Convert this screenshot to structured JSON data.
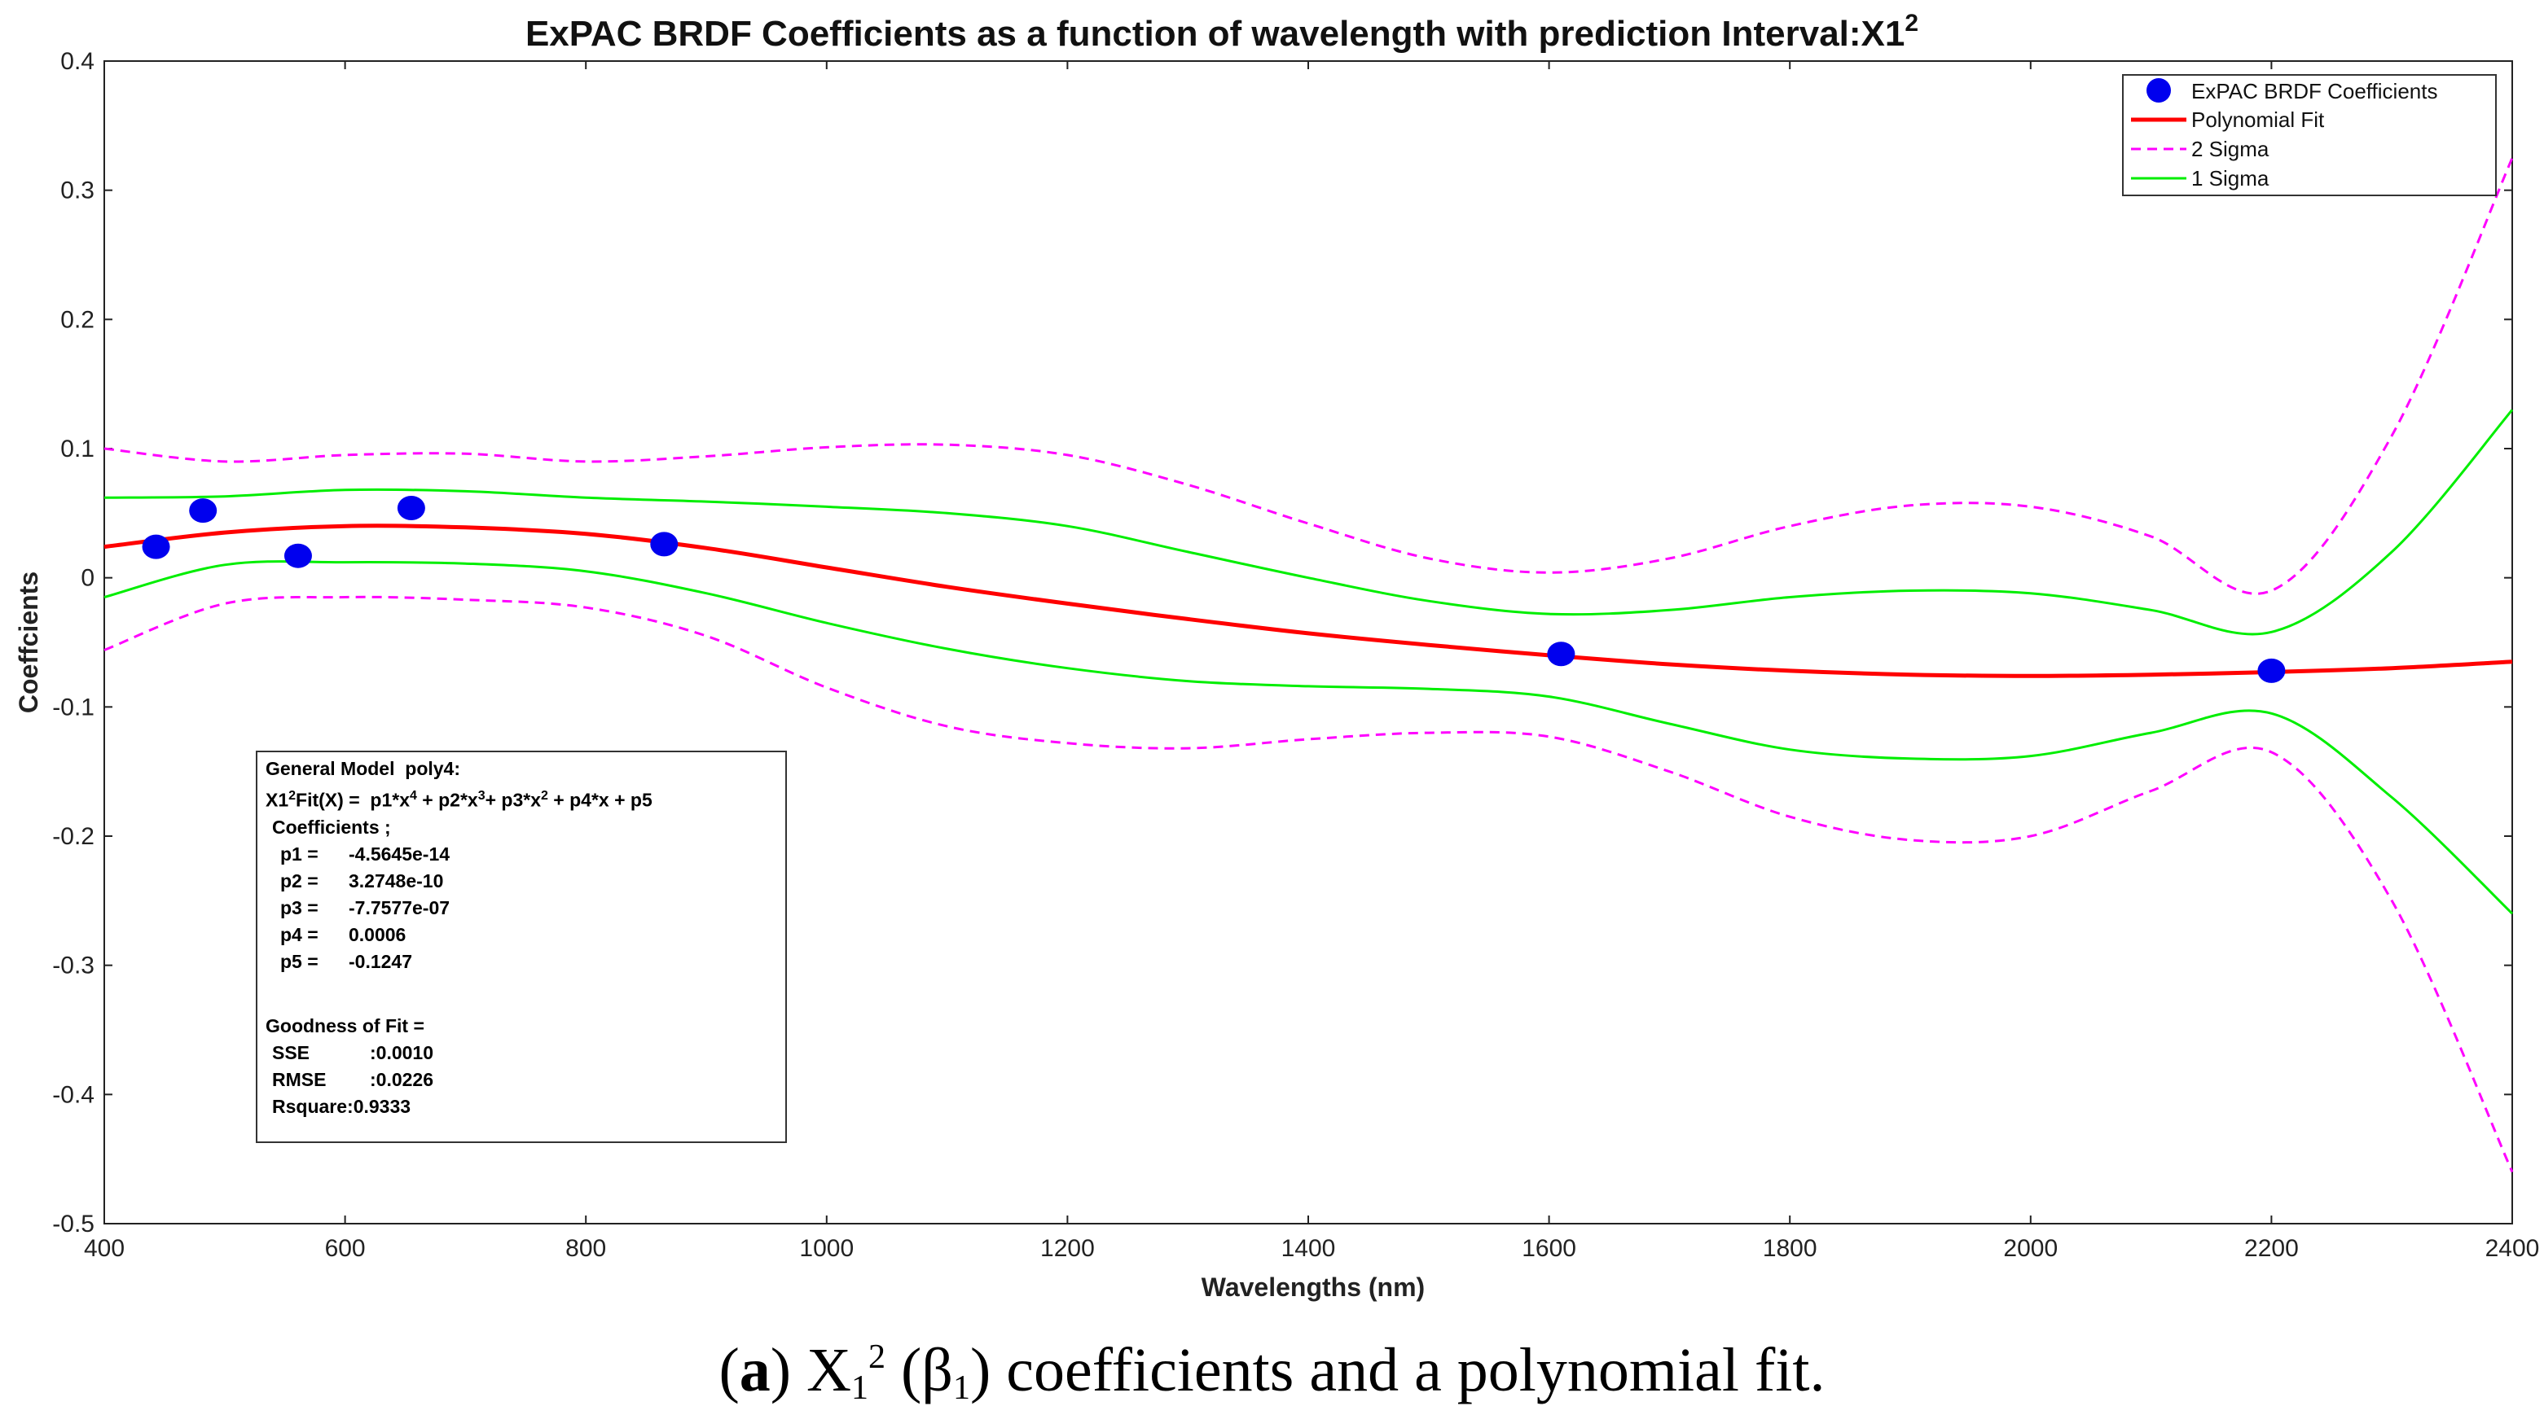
{
  "chart_data": {
    "type": "scatter",
    "title": "ExPAC BRDF Coefficients as a function of wavelength with prediction Interval:X1",
    "title_superscript": "2",
    "xlabel": "Wavelengths  (nm)",
    "ylabel": "Coeffcients",
    "xlim": [
      400,
      2400
    ],
    "ylim": [
      -0.5,
      0.4
    ],
    "xticks": [
      400,
      600,
      800,
      1000,
      1200,
      1400,
      1600,
      1800,
      2000,
      2200,
      2400
    ],
    "yticks": [
      0.4,
      0.3,
      0.2,
      0.1,
      0,
      -0.1,
      -0.2,
      -0.3,
      -0.4,
      -0.5
    ],
    "legend_position": "top-right",
    "points": {
      "name": "ExPAC BRDF Coefficients",
      "color": "#0000ee",
      "x": [
        443,
        482,
        561,
        655,
        865,
        1610,
        2200
      ],
      "y": [
        0.024,
        0.052,
        0.017,
        0.054,
        0.026,
        -0.059,
        -0.072
      ]
    },
    "series": [
      {
        "name": "Polynomial Fit",
        "color": "#ff0000",
        "style": "solid",
        "x": [
          400,
          500,
          600,
          700,
          800,
          900,
          1000,
          1100,
          1200,
          1300,
          1400,
          1500,
          1600,
          1700,
          1800,
          1900,
          2000,
          2100,
          2200,
          2300,
          2400
        ],
        "y": [
          0.024,
          0.035,
          0.04,
          0.039,
          0.034,
          0.023,
          0.008,
          -0.007,
          -0.02,
          -0.032,
          -0.043,
          -0.052,
          -0.06,
          -0.067,
          -0.072,
          -0.075,
          -0.076,
          -0.075,
          -0.073,
          -0.07,
          -0.065
        ]
      },
      {
        "name": "2 Sigma",
        "color": "#ff00ff",
        "style": "dashed",
        "x": [
          400,
          500,
          600,
          700,
          800,
          900,
          1000,
          1100,
          1200,
          1300,
          1400,
          1500,
          1600,
          1700,
          1800,
          1900,
          2000,
          2100,
          2200,
          2300,
          2400
        ],
        "y": [
          0.1,
          0.09,
          0.095,
          0.096,
          0.09,
          0.094,
          0.101,
          0.103,
          0.095,
          0.072,
          0.042,
          0.015,
          0.004,
          0.015,
          0.04,
          0.056,
          0.055,
          0.032,
          -0.01,
          0.11,
          0.325
        ]
      },
      {
        "name": "2 Sigma",
        "color": "#ff00ff",
        "style": "dashed",
        "show_in_legend": false,
        "x": [
          400,
          500,
          600,
          700,
          800,
          900,
          1000,
          1100,
          1200,
          1300,
          1400,
          1500,
          1600,
          1700,
          1800,
          1900,
          2000,
          2100,
          2200,
          2300,
          2400
        ],
        "y": [
          -0.056,
          -0.02,
          -0.015,
          -0.017,
          -0.023,
          -0.045,
          -0.085,
          -0.115,
          -0.128,
          -0.132,
          -0.125,
          -0.12,
          -0.123,
          -0.15,
          -0.185,
          -0.203,
          -0.2,
          -0.165,
          -0.135,
          -0.25,
          -0.46
        ]
      },
      {
        "name": "1 Sigma",
        "color": "#00ee00",
        "style": "solid",
        "x": [
          400,
          500,
          600,
          700,
          800,
          900,
          1000,
          1100,
          1200,
          1300,
          1400,
          1500,
          1600,
          1700,
          1800,
          1900,
          2000,
          2100,
          2200,
          2300,
          2400
        ],
        "y": [
          0.062,
          0.063,
          0.068,
          0.067,
          0.062,
          0.059,
          0.055,
          0.05,
          0.04,
          0.02,
          0.0,
          -0.018,
          -0.028,
          -0.025,
          -0.015,
          -0.01,
          -0.012,
          -0.025,
          -0.042,
          0.02,
          0.13
        ]
      },
      {
        "name": "1 Sigma",
        "color": "#00ee00",
        "style": "solid",
        "show_in_legend": false,
        "x": [
          400,
          500,
          600,
          700,
          800,
          900,
          1000,
          1100,
          1200,
          1300,
          1400,
          1500,
          1600,
          1700,
          1800,
          1900,
          2000,
          2100,
          2200,
          2300,
          2400
        ],
        "y": [
          -0.015,
          0.01,
          0.012,
          0.011,
          0.005,
          -0.012,
          -0.035,
          -0.055,
          -0.07,
          -0.08,
          -0.084,
          -0.086,
          -0.092,
          -0.113,
          -0.133,
          -0.14,
          -0.138,
          -0.12,
          -0.105,
          -0.17,
          -0.26
        ]
      }
    ]
  },
  "legend": {
    "items": [
      "ExPAC BRDF Coefficients",
      "Polynomial Fit",
      "2 Sigma",
      "1 Sigma"
    ]
  },
  "info_box": {
    "model_title": "General Model  poly4:",
    "formula_lhs": "X1",
    "formula_sup": "2",
    "formula_rhs": "Fit(X) =  p1*x",
    "formula_parts": [
      "4",
      " + p2*x",
      "3",
      "+ p3*x",
      "2",
      " + p4*x + p5"
    ],
    "coefficients_label": "Coefficients ;",
    "coefficients": [
      {
        "name": "p1 =",
        "value": "-4.5645e-14"
      },
      {
        "name": "p2 =",
        "value": "3.2748e-10"
      },
      {
        "name": "p3 =",
        "value": "-7.7577e-07"
      },
      {
        "name": "p4 =",
        "value": "0.0006"
      },
      {
        "name": "p5 =",
        "value": "-0.1247"
      }
    ],
    "gof_label": "Goodness of Fit =",
    "gof": [
      {
        "name": "SSE",
        "value": ":0.0010"
      },
      {
        "name": "RMSE",
        "value": ":0.0226"
      },
      {
        "name": "Rsquare",
        "value": ":0.9333"
      }
    ]
  },
  "caption": {
    "label": "(a)",
    "label_inner": "a",
    "symbol": "X",
    "symbol_sub": "1",
    "symbol_sup": "2",
    "beta": "β",
    "beta_sub": "1",
    "text": "coefficients and a polynomial fit."
  }
}
